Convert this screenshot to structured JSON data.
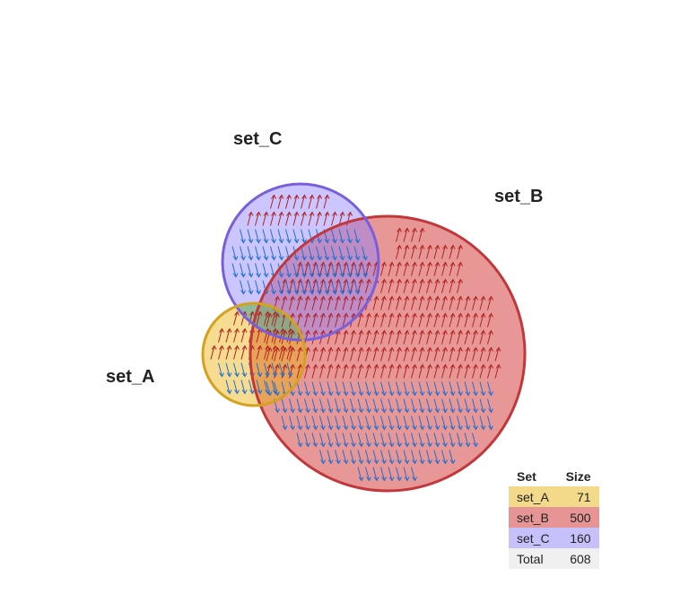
{
  "chart_data": {
    "type": "venn",
    "sets": [
      {
        "key": "a",
        "name": "set_A",
        "size": 71,
        "fill": "#e8b10a",
        "stroke": "#d4a21c"
      },
      {
        "key": "b",
        "name": "set_B",
        "size": 500,
        "fill": "#d12f2f",
        "stroke": "#c0383c"
      },
      {
        "key": "c",
        "name": "set_C",
        "size": 160,
        "fill": "#8c80ff",
        "stroke": "#7a5fdc"
      }
    ],
    "legend": {
      "headers": {
        "set": "Set",
        "size": "Size"
      },
      "rows": [
        {
          "set": "set_A",
          "size": "71",
          "color": "#f3d98a"
        },
        {
          "set": "set_B",
          "size": "500",
          "color": "#e69494"
        },
        {
          "set": "set_C",
          "size": "160",
          "color": "#c7c1fb"
        }
      ],
      "total": {
        "set": "Total",
        "size": "608",
        "color": "#f0f0f0"
      }
    },
    "arrow_colors": {
      "up": "#b22222",
      "down": "#1f6fd1"
    }
  }
}
